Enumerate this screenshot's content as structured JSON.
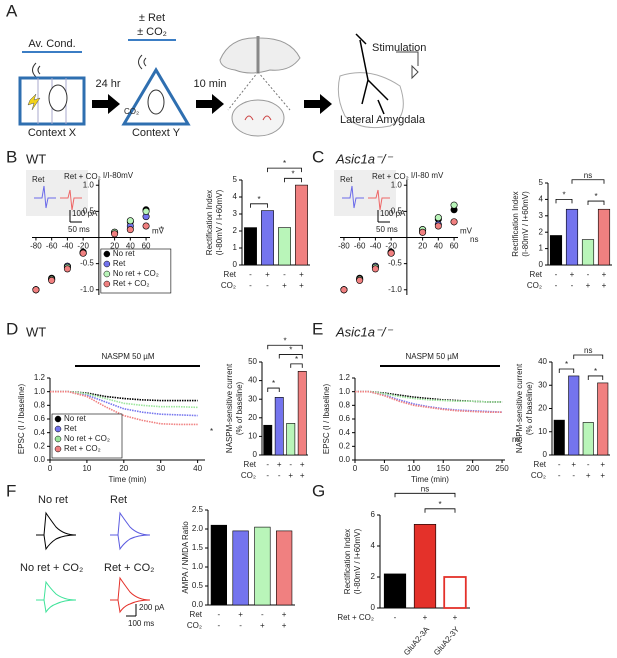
{
  "figure": {
    "panels": [
      "A",
      "B",
      "C",
      "D",
      "E",
      "F",
      "G"
    ],
    "genotypes": [
      "WT",
      "Asic1a⁻/⁻",
      "WT",
      "Asic1a⁻/⁻"
    ],
    "schematic": {
      "av_cond": "Av. Cond.",
      "ret": "± Ret",
      "co2": "± CO₂",
      "delay1": "24 hr",
      "delay2": "10 min",
      "context_x": "Context X",
      "context_y": "Context Y",
      "co2_small": "CO₂",
      "stimulation": "Stimulation",
      "region": "Lateral Amygdala"
    },
    "insets": [
      {
        "ret": "Ret",
        "ret_co2": "Ret + CO₂",
        "scale_y": "100 pA",
        "scale_x": "50 ms"
      },
      {
        "ret": "Ret",
        "ret_co2": "Ret + CO₂",
        "scale_y": "100 pA",
        "scale_x": "50 ms"
      }
    ],
    "naspm": [
      "NASPM 50 µM",
      "NASPM 50 µM"
    ],
    "traces": [
      "No ret",
      "Ret",
      "No ret + CO₂",
      "Ret + CO₂"
    ],
    "trace_scale": [
      "200 pA",
      "100 ms"
    ]
  },
  "chart_data": [
    {
      "type": "scatter",
      "xlabel": "mV",
      "ylabel": "I/I-80mV",
      "xlim": [
        -85,
        65
      ],
      "ylim": [
        -1.1,
        1.1
      ],
      "xticks": [
        -80,
        -60,
        -40,
        -20,
        20,
        40,
        60
      ],
      "yticks": [
        {
          "value": 1,
          "label": "1.0"
        },
        {
          "value": 0.5,
          "label": "0.5"
        },
        {
          "value": -0.5,
          "label": "-0.5"
        },
        {
          "value": -1,
          "label": "-1.0"
        }
      ],
      "x": [
        -80,
        -60,
        -40,
        -20,
        20,
        40,
        60
      ],
      "legend": "lower right",
      "annotations": [
        "*"
      ],
      "series": [
        {
          "name": "No ret",
          "color": "#000000",
          "values": [
            -1.0,
            -0.78,
            -0.55,
            -0.28,
            0.1,
            0.3,
            0.53
          ]
        },
        {
          "name": "Ret",
          "color": "#7474ee",
          "values": [
            -1.0,
            -0.8,
            -0.55,
            -0.3,
            0.08,
            0.22,
            0.4
          ]
        },
        {
          "name": "No ret + CO₂",
          "color": "#b9f5b9",
          "values": [
            -1.0,
            -0.8,
            -0.57,
            -0.3,
            0.1,
            0.32,
            0.5
          ]
        },
        {
          "name": "Ret + CO₂",
          "color": "#f08080",
          "values": [
            -1.0,
            -0.82,
            -0.6,
            -0.3,
            0.07,
            0.15,
            0.22
          ]
        }
      ]
    },
    {
      "type": "bar",
      "ylabel": [
        "Rectification Index",
        "(I-80mV / I+60mV)"
      ],
      "ylim": [
        0,
        5
      ],
      "yticks": [
        0,
        1,
        2,
        3,
        4,
        5
      ],
      "values": [
        2.2,
        3.2,
        2.2,
        4.7
      ],
      "colors": [
        "#000000",
        "#7474ee",
        "#b9f5b9",
        "#f08080"
      ],
      "conditions": [
        {
          "name": "Ret",
          "signs": [
            "-",
            "+",
            "-",
            "+"
          ]
        },
        {
          "name": "CO₂",
          "signs": [
            "-",
            "-",
            "+",
            "+"
          ]
        }
      ],
      "annotations": [
        "*",
        "*",
        "*"
      ]
    },
    {
      "type": "scatter",
      "xlabel": "mV",
      "ylabel": "I/I-80 mV",
      "xlim": [
        -85,
        65
      ],
      "ylim": [
        -1.1,
        1.1
      ],
      "xticks": [
        -80,
        -60,
        -40,
        -20,
        20,
        40,
        60
      ],
      "yticks": [
        {
          "value": 1,
          "label": "1.0"
        },
        {
          "value": 0.5,
          "label": "0.5"
        },
        {
          "value": -0.5,
          "label": "-0.5"
        },
        {
          "value": -1,
          "label": "-1.0"
        }
      ],
      "x": [
        -80,
        -60,
        -40,
        -20,
        20,
        40,
        60
      ],
      "annotations": [
        "ns"
      ],
      "series": [
        {
          "color": "#000000",
          "values": [
            -1.0,
            -0.78,
            -0.55,
            -0.28,
            0.15,
            0.35,
            0.53
          ]
        },
        {
          "color": "#7474ee",
          "values": [
            -1.0,
            -0.8,
            -0.55,
            -0.3,
            0.1,
            0.25,
            0.3
          ]
        },
        {
          "color": "#b9f5b9",
          "values": [
            -1.0,
            -0.8,
            -0.57,
            -0.3,
            0.15,
            0.38,
            0.62
          ]
        },
        {
          "color": "#f08080",
          "values": [
            -1.0,
            -0.82,
            -0.6,
            -0.3,
            0.1,
            0.22,
            0.3
          ]
        }
      ]
    },
    {
      "type": "bar",
      "ylabel": [
        "Rectification Index",
        "(I-80mV / I+60mV)"
      ],
      "ylim": [
        0,
        5
      ],
      "yticks": [
        0,
        1,
        2,
        3,
        4,
        5
      ],
      "values": [
        1.8,
        3.4,
        1.55,
        3.4
      ],
      "colors": [
        "#000000",
        "#7474ee",
        "#b9f5b9",
        "#f08080"
      ],
      "conditions": [
        {
          "name": "Ret",
          "signs": [
            "-",
            "+",
            "-",
            "+"
          ]
        },
        {
          "name": "CO₂",
          "signs": [
            "-",
            "-",
            "+",
            "+"
          ]
        }
      ],
      "annotations": [
        "*",
        "*",
        "ns"
      ]
    },
    {
      "type": "line",
      "xlabel": "Time (min)",
      "ylabel": "EPSC (I / Ibaseline)",
      "xlim": [
        0,
        42
      ],
      "ylim": [
        0,
        1.2
      ],
      "xticks": [
        0,
        10,
        20,
        30,
        40
      ],
      "yticks": [
        {
          "value": 0,
          "label": "0.0"
        },
        0.2,
        0.4,
        0.6,
        0.8,
        {
          "value": 1,
          "label": "1.0"
        },
        1.2
      ],
      "x": [
        0,
        5,
        10,
        15,
        20,
        25,
        30,
        35,
        40
      ],
      "legend": "lower left",
      "annotations": [
        "*"
      ],
      "series": [
        {
          "name": "No ret",
          "color": "#000000",
          "values": [
            1,
            1,
            0.98,
            0.93,
            0.9,
            0.88,
            0.87,
            0.87,
            0.87
          ]
        },
        {
          "name": "Ret",
          "color": "#7474ee",
          "values": [
            1,
            1,
            0.95,
            0.85,
            0.75,
            0.7,
            0.67,
            0.66,
            0.65
          ]
        },
        {
          "name": "No ret + CO₂",
          "color": "#9be59b",
          "values": [
            1,
            1,
            0.97,
            0.9,
            0.83,
            0.8,
            0.78,
            0.78,
            0.77
          ]
        },
        {
          "name": "Ret + CO₂",
          "color": "#f08080",
          "values": [
            1,
            1,
            0.93,
            0.78,
            0.65,
            0.58,
            0.53,
            0.52,
            0.52
          ]
        }
      ]
    },
    {
      "type": "bar",
      "ylabel": [
        "NASPM-sensitive current",
        "(% of baseline)"
      ],
      "ylim": [
        0,
        50
      ],
      "yticks": [
        0,
        10,
        20,
        30,
        40,
        50
      ],
      "values": [
        16,
        31,
        17,
        45
      ],
      "colors": [
        "#000000",
        "#7474ee",
        "#b9f5b9",
        "#f08080"
      ],
      "conditions": [
        {
          "name": "Ret",
          "signs": [
            "-",
            "+",
            "-",
            "+"
          ]
        },
        {
          "name": "CO₂",
          "signs": [
            "-",
            "-",
            "+",
            "+"
          ]
        }
      ],
      "annotations": [
        "*",
        "*",
        "*",
        "*"
      ]
    },
    {
      "type": "line",
      "xlabel": "Time (min)",
      "ylabel": "EPSC (I / Ibaseline)",
      "xlim": [
        0,
        255
      ],
      "ylim": [
        0,
        1.2
      ],
      "xticks": [
        0,
        50,
        100,
        150,
        200,
        250
      ],
      "yticks": [
        {
          "value": 0,
          "label": "0.0"
        },
        0.2,
        0.4,
        0.6,
        0.8,
        {
          "value": 1,
          "label": "1.0"
        },
        1.2
      ],
      "x": [
        0,
        25,
        50,
        75,
        100,
        125,
        150,
        175,
        200,
        225,
        250
      ],
      "annotations": [
        "ns"
      ],
      "series": [
        {
          "color": "#000000",
          "values": [
            1,
            1,
            0.98,
            0.95,
            0.92,
            0.9,
            0.88,
            0.87,
            0.86,
            0.85,
            0.85
          ]
        },
        {
          "color": "#7474ee",
          "values": [
            1,
            1,
            0.95,
            0.88,
            0.82,
            0.78,
            0.75,
            0.73,
            0.72,
            0.71,
            0.7
          ]
        },
        {
          "color": "#9be59b",
          "values": [
            1,
            1,
            0.97,
            0.93,
            0.9,
            0.88,
            0.87,
            0.86,
            0.86,
            0.85,
            0.85
          ]
        },
        {
          "color": "#f08080",
          "values": [
            1,
            1,
            0.94,
            0.86,
            0.8,
            0.77,
            0.74,
            0.72,
            0.71,
            0.7,
            0.7
          ]
        }
      ]
    },
    {
      "type": "bar",
      "ylabel": [
        "NASPM-sensitive current",
        "(% of baseline)"
      ],
      "ylim": [
        0,
        40
      ],
      "yticks": [
        0,
        10,
        20,
        30,
        40
      ],
      "values": [
        15,
        34,
        14,
        31
      ],
      "colors": [
        "#000000",
        "#7474ee",
        "#b9f5b9",
        "#f08080"
      ],
      "conditions": [
        {
          "name": "Ret",
          "signs": [
            "-",
            "+",
            "-",
            "+"
          ]
        },
        {
          "name": "CO₂",
          "signs": [
            "-",
            "-",
            "+",
            "+"
          ]
        }
      ],
      "annotations": [
        "*",
        "*",
        "ns"
      ]
    },
    {
      "type": "bar",
      "ylabel": [
        "AMPA / NMDA Ratio"
      ],
      "ylim": [
        0,
        2.5
      ],
      "yticks": [
        {
          "value": 0,
          "label": "0.0"
        },
        0.5,
        {
          "value": 1,
          "label": "1.0"
        },
        1.5,
        {
          "value": 2,
          "label": "2.0"
        },
        2.5
      ],
      "values": [
        2.1,
        1.95,
        2.05,
        1.95
      ],
      "colors": [
        "#000000",
        "#7474ee",
        "#b9f5b9",
        "#f08080"
      ],
      "conditions": [
        {
          "name": "Ret",
          "signs": [
            "-",
            "+",
            "-",
            "+"
          ]
        },
        {
          "name": "CO₂",
          "signs": [
            "-",
            "-",
            "+",
            "+"
          ]
        }
      ]
    },
    {
      "type": "bar",
      "ylabel": [
        "Rectification Index",
        "(I-80mV / I+60mV)"
      ],
      "ylim": [
        0,
        6
      ],
      "yticks": [
        0,
        2,
        4,
        6
      ],
      "values": [
        2.2,
        5.4,
        2.0
      ],
      "colors": [
        "#000000",
        "#e4312a",
        "#e4312a"
      ],
      "bar_styles": [
        "filled",
        "filled",
        "open"
      ],
      "conditions": [
        {
          "name": "Ret + CO₂",
          "signs": [
            "-",
            "+",
            "+"
          ]
        }
      ],
      "sublabels": [
        null,
        "GluA2-3A",
        "GluA2-3Y"
      ],
      "annotations": [
        "ns",
        "*"
      ]
    }
  ]
}
